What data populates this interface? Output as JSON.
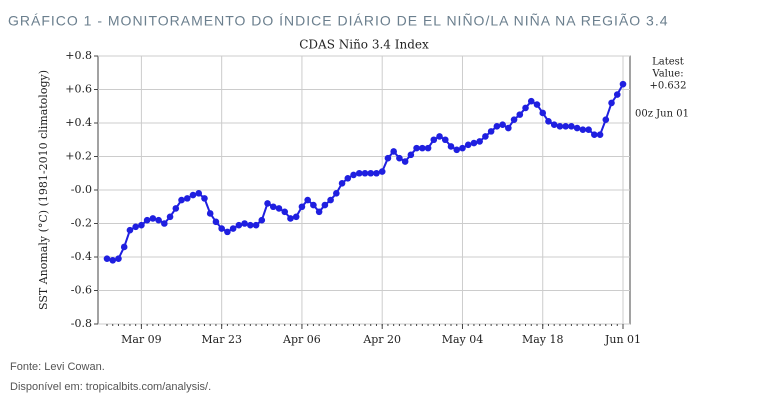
{
  "header": "GRÁFICO 1 - MONITORAMENTO DO ÍNDICE DIÁRIO DE EL NIÑO/LA NIÑA NA REGIÃO 3.4",
  "chart_data": {
    "type": "line",
    "title": "CDAS Niño 3.4 Index",
    "y_label": "SST Anomaly (°C) (1981-2010 climatology)",
    "annotations": [
      "Latest",
      "Value:",
      "+0.632",
      "00z Jun 01"
    ],
    "x": [
      "Mar 03",
      "Mar 04",
      "Mar 05",
      "Mar 06",
      "Mar 07",
      "Mar 08",
      "Mar 09",
      "Mar 10",
      "Mar 11",
      "Mar 12",
      "Mar 13",
      "Mar 14",
      "Mar 15",
      "Mar 16",
      "Mar 17",
      "Mar 18",
      "Mar 19",
      "Mar 20",
      "Mar 21",
      "Mar 22",
      "Mar 23",
      "Mar 24",
      "Mar 25",
      "Mar 26",
      "Mar 27",
      "Mar 28",
      "Mar 29",
      "Mar 30",
      "Mar 31",
      "Apr 01",
      "Apr 02",
      "Apr 03",
      "Apr 04",
      "Apr 05",
      "Apr 06",
      "Apr 07",
      "Apr 08",
      "Apr 09",
      "Apr 10",
      "Apr 11",
      "Apr 12",
      "Apr 13",
      "Apr 14",
      "Apr 15",
      "Apr 16",
      "Apr 17",
      "Apr 18",
      "Apr 19",
      "Apr 20",
      "Apr 21",
      "Apr 22",
      "Apr 23",
      "Apr 24",
      "Apr 25",
      "Apr 26",
      "Apr 27",
      "Apr 28",
      "Apr 29",
      "Apr 30",
      "May 01",
      "May 02",
      "May 03",
      "May 04",
      "May 05",
      "May 06",
      "May 07",
      "May 08",
      "May 09",
      "May 10",
      "May 11",
      "May 12",
      "May 13",
      "May 14",
      "May 15",
      "May 16",
      "May 17",
      "May 18",
      "May 19",
      "May 20",
      "May 21",
      "May 22",
      "May 23",
      "May 24",
      "May 25",
      "May 26",
      "May 27",
      "May 28",
      "May 29",
      "May 30",
      "May 31",
      "Jun 01"
    ],
    "series": [
      {
        "name": "CDAS Niño 3.4",
        "color": "#1f1fe0",
        "values": [
          -0.41,
          -0.42,
          -0.41,
          -0.34,
          -0.24,
          -0.22,
          -0.21,
          -0.18,
          -0.17,
          -0.18,
          -0.2,
          -0.16,
          -0.11,
          -0.06,
          -0.05,
          -0.03,
          -0.02,
          -0.05,
          -0.14,
          -0.19,
          -0.23,
          -0.25,
          -0.23,
          -0.21,
          -0.2,
          -0.21,
          -0.21,
          -0.18,
          -0.08,
          -0.1,
          -0.11,
          -0.13,
          -0.17,
          -0.16,
          -0.1,
          -0.06,
          -0.09,
          -0.13,
          -0.09,
          -0.06,
          -0.02,
          0.04,
          0.07,
          0.09,
          0.1,
          0.1,
          0.1,
          0.1,
          0.11,
          0.19,
          0.23,
          0.19,
          0.17,
          0.21,
          0.25,
          0.25,
          0.25,
          0.3,
          0.32,
          0.3,
          0.26,
          0.24,
          0.25,
          0.27,
          0.28,
          0.29,
          0.32,
          0.35,
          0.38,
          0.39,
          0.37,
          0.42,
          0.45,
          0.49,
          0.53,
          0.51,
          0.46,
          0.41,
          0.39,
          0.38,
          0.38,
          0.38,
          0.37,
          0.36,
          0.36,
          0.33,
          0.33,
          0.42,
          0.52,
          0.57,
          0.632
        ]
      }
    ],
    "xticks": [
      "Mar 09",
      "Mar 23",
      "Apr 06",
      "Apr 20",
      "May 04",
      "May 18",
      "Jun 01"
    ],
    "ylim": [
      -0.8,
      0.8
    ],
    "yticks": [
      {
        "value": -0.8,
        "label": "-0.8"
      },
      {
        "value": -0.6,
        "label": "-0.6"
      },
      {
        "value": -0.4,
        "label": "-0.4"
      },
      {
        "value": -0.2,
        "label": "-0.2"
      },
      {
        "value": 0,
        "label": "-0.0"
      },
      {
        "value": 0.2,
        "label": "+0.2"
      },
      {
        "value": 0.4,
        "label": "+0.4"
      },
      {
        "value": 0.6,
        "label": "+0.6"
      },
      {
        "value": 0.8,
        "label": "+0.8"
      }
    ],
    "grid": true
  },
  "footer": [
    "Fonte: Levi Cowan.",
    "Disponível em: tropicalbits.com/analysis/."
  ]
}
